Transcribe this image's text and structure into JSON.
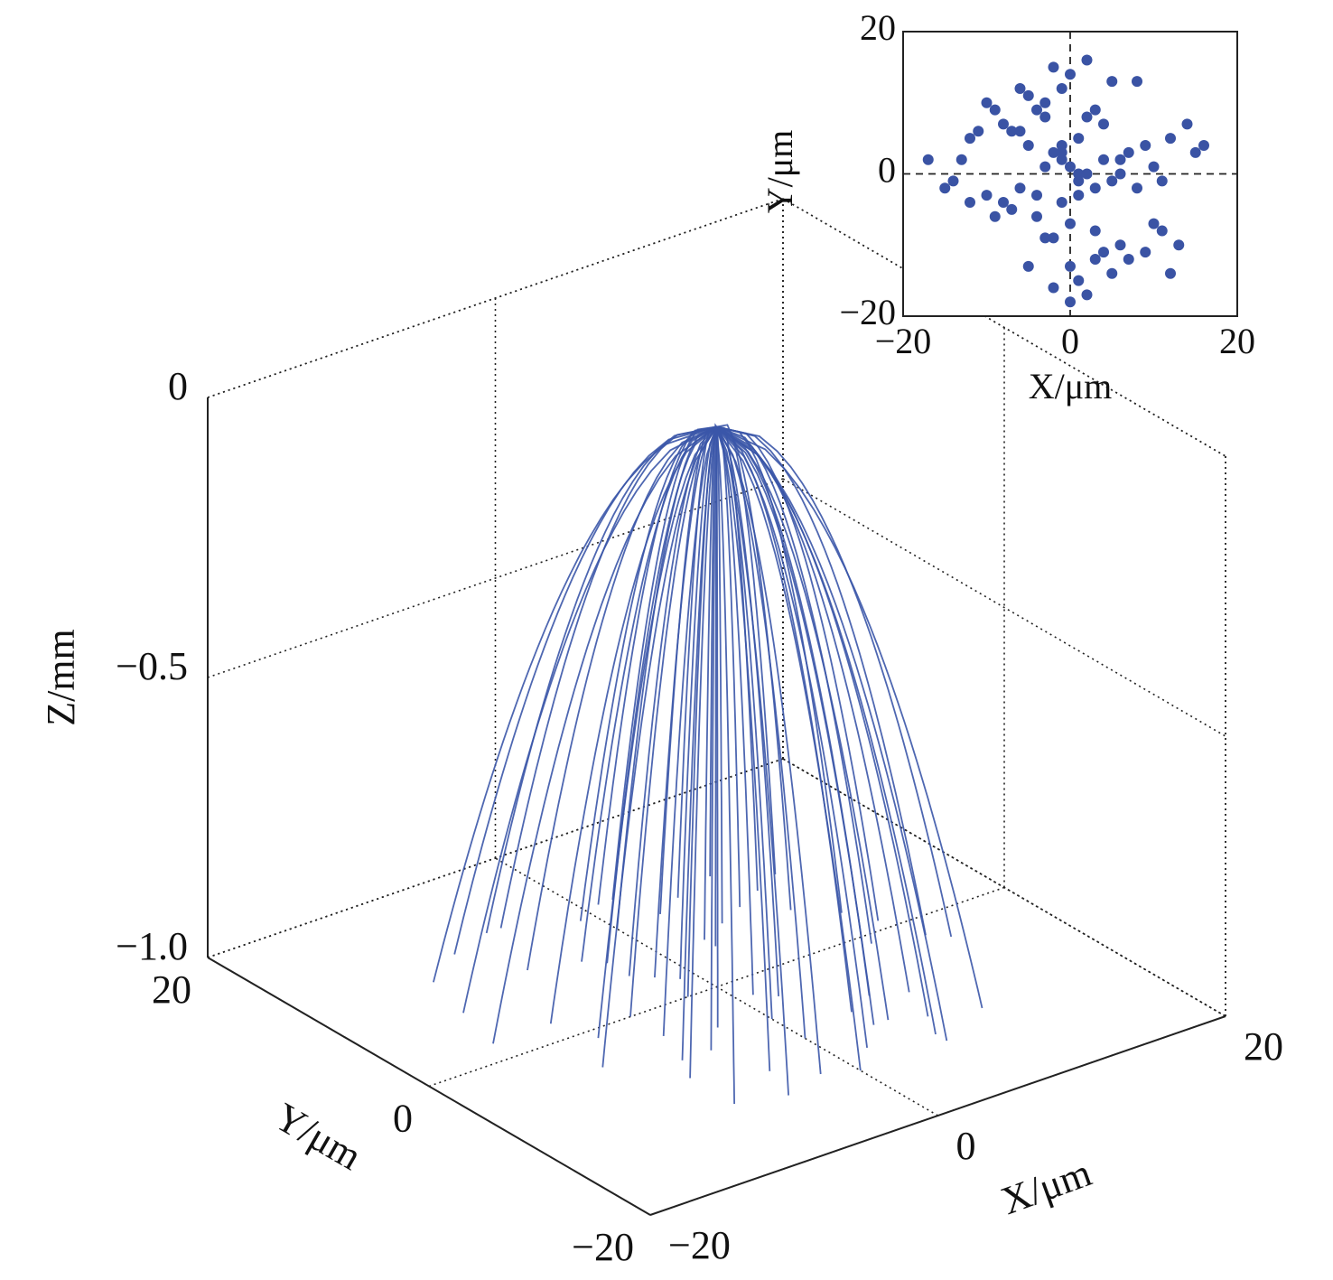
{
  "chart_data": [
    {
      "type": "trajectory3d",
      "xlabel": "X/μm",
      "ylabel": "Y/μm",
      "zlabel": "Z/mm",
      "xlim": [
        -20,
        20
      ],
      "ylim": [
        -20,
        20
      ],
      "zlim": [
        -1,
        0
      ],
      "xticks": [
        {
          "value": -20,
          "label": "−20"
        },
        0,
        20
      ],
      "yticks": [
        {
          "value": -20,
          "label": "−20"
        },
        0,
        20
      ],
      "zticks": [
        {
          "value": -1,
          "label": "−1.0"
        },
        {
          "value": -0.5,
          "label": "−0.5"
        },
        0
      ],
      "grid": true,
      "color": "#3b56a8",
      "end_x": [
        -12,
        -9,
        -7,
        -5,
        -3,
        -1,
        1,
        3,
        5,
        7,
        9,
        11,
        13,
        -11,
        -8,
        -6,
        -4,
        -2,
        0,
        2,
        4,
        6,
        8,
        10,
        -10,
        -6,
        -3,
        0,
        3,
        6,
        9,
        -13,
        -7,
        -2,
        2,
        7,
        12,
        -5,
        0,
        5,
        -9,
        -4,
        4,
        10,
        -1,
        1,
        -3,
        3,
        -6,
        6,
        8,
        -8,
        -2,
        2,
        14,
        -14,
        0,
        5,
        -5,
        11
      ],
      "end_y": [
        10,
        12,
        8,
        13,
        6,
        11,
        12,
        9,
        10,
        7,
        5,
        3,
        -2,
        -4,
        -8,
        -3,
        -10,
        -12,
        -13,
        -11,
        -9,
        -6,
        -7,
        -1,
        2,
        0,
        4,
        -5,
        5,
        -12,
        8,
        6,
        -6,
        3,
        -3,
        -10,
        1,
        -13,
        9,
        -9,
        -1,
        7,
        -7,
        -11,
        2,
        -2,
        -4,
        4,
        13,
        -13,
        11,
        -12,
        0,
        12,
        -3,
        2,
        -8,
        6,
        -6,
        9
      ]
    },
    {
      "type": "scatter",
      "xlabel": "X/μm",
      "ylabel": "Y/μm",
      "xlim": [
        -20,
        20
      ],
      "ylim": [
        -20,
        20
      ],
      "xticks": [
        {
          "value": -20,
          "label": "−20"
        },
        0,
        20
      ],
      "yticks": [
        {
          "value": -20,
          "label": "−20"
        },
        0,
        20
      ],
      "color": "#3a53a4",
      "x": [
        0,
        1,
        -1,
        2,
        -2,
        3,
        -3,
        1,
        -1,
        0,
        4,
        -4,
        5,
        -5,
        2,
        -2,
        6,
        -6,
        3,
        -3,
        7,
        -7,
        8,
        -8,
        0,
        1,
        -1,
        9,
        -9,
        10,
        -10,
        4,
        -4,
        11,
        -11,
        12,
        -12,
        13,
        -13,
        14,
        -14,
        15,
        -15,
        16,
        -17,
        5,
        -5,
        2,
        -2,
        6,
        -6,
        0,
        3,
        -3,
        7,
        -7,
        1,
        -1,
        8,
        -8,
        4,
        -4,
        9,
        -9,
        0,
        2,
        -2,
        5,
        -5,
        10,
        -10,
        3,
        -3,
        12,
        -12,
        6,
        -6,
        1,
        -1,
        11
      ],
      "y": [
        1,
        -1,
        2,
        0,
        3,
        -2,
        1,
        5,
        -4,
        -7,
        2,
        -3,
        -1,
        4,
        8,
        -9,
        0,
        6,
        -12,
        10,
        3,
        -5,
        -2,
        7,
        14,
        -15,
        12,
        4,
        -6,
        1,
        -3,
        -11,
        9,
        -8,
        6,
        5,
        -4,
        -10,
        2,
        7,
        -1,
        3,
        -2,
        4,
        2,
        -14,
        11,
        -17,
        15,
        -10,
        12,
        -13,
        9,
        -9,
        -12,
        6,
        -3,
        4,
        13,
        -4,
        7,
        -6,
        -11,
        9,
        -18,
        16,
        -16,
        13,
        -13,
        -7,
        10,
        -8,
        8,
        -14,
        5,
        2,
        -2,
        0,
        3,
        -1
      ]
    }
  ]
}
